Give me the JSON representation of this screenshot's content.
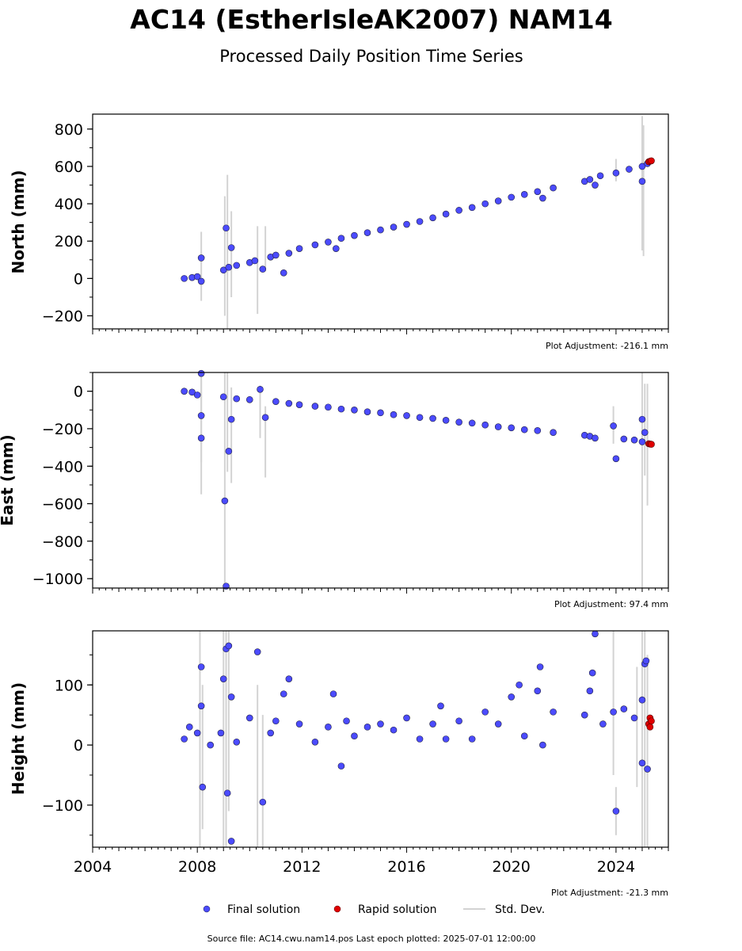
{
  "title": "AC14 (EstherIsleAK2007) NAM14",
  "subtitle": "Processed Daily Position Time Series",
  "legend": {
    "final": "Final solution",
    "rapid": "Rapid solution",
    "std": "Std. Dev."
  },
  "footer": "Source file: AC14.cwu.nam14.pos  Last epoch plotted: 2025-07-01 12:00:00",
  "colors": {
    "final": "#4b4bff",
    "rapid": "#e00000",
    "std": "#d3d3d3",
    "edge": "#202040"
  },
  "chart_data": [
    {
      "type": "scatter",
      "ylabel": "North (mm)",
      "xlim": [
        2004,
        2026
      ],
      "ylim": [
        -270,
        880
      ],
      "yticks": [
        800,
        600,
        400,
        200,
        0,
        -200
      ],
      "ytick_labels": [
        "800",
        "600",
        "400",
        "200",
        "0",
        "−200"
      ],
      "adjustment": "Plot Adjustment: -216.1 mm",
      "series_final": [
        [
          2007.5,
          0
        ],
        [
          2007.8,
          5
        ],
        [
          2008.0,
          10
        ],
        [
          2008.15,
          110
        ],
        [
          2008.15,
          -15
        ],
        [
          2009.0,
          45
        ],
        [
          2009.1,
          270
        ],
        [
          2009.2,
          60
        ],
        [
          2009.3,
          165
        ],
        [
          2009.5,
          70
        ],
        [
          2010.0,
          85
        ],
        [
          2010.2,
          95
        ],
        [
          2010.5,
          50
        ],
        [
          2010.8,
          115
        ],
        [
          2011.0,
          125
        ],
        [
          2011.3,
          30
        ],
        [
          2011.5,
          135
        ],
        [
          2011.9,
          160
        ],
        [
          2012.5,
          180
        ],
        [
          2013.0,
          195
        ],
        [
          2013.3,
          160
        ],
        [
          2013.5,
          215
        ],
        [
          2014.0,
          230
        ],
        [
          2014.5,
          245
        ],
        [
          2015.0,
          260
        ],
        [
          2015.5,
          275
        ],
        [
          2016.0,
          290
        ],
        [
          2016.5,
          305
        ],
        [
          2017.0,
          325
        ],
        [
          2017.5,
          345
        ],
        [
          2018.0,
          365
        ],
        [
          2018.5,
          380
        ],
        [
          2019.0,
          400
        ],
        [
          2019.5,
          415
        ],
        [
          2020.0,
          435
        ],
        [
          2020.5,
          450
        ],
        [
          2021.0,
          465
        ],
        [
          2021.2,
          430
        ],
        [
          2021.6,
          485
        ],
        [
          2022.8,
          520
        ],
        [
          2023.0,
          530
        ],
        [
          2023.2,
          500
        ],
        [
          2023.4,
          550
        ],
        [
          2024.0,
          565
        ],
        [
          2024.5,
          585
        ],
        [
          2025.0,
          600
        ],
        [
          2025.0,
          520
        ],
        [
          2025.2,
          615
        ]
      ],
      "series_rapid": [
        [
          2025.25,
          625
        ],
        [
          2025.3,
          628
        ],
        [
          2025.35,
          630
        ]
      ],
      "std_bars": [
        [
          2008.15,
          -120,
          250
        ],
        [
          2009.05,
          -200,
          440
        ],
        [
          2009.15,
          -280,
          555
        ],
        [
          2009.3,
          -100,
          360
        ],
        [
          2010.3,
          -190,
          280
        ],
        [
          2010.6,
          60,
          280
        ],
        [
          2025.0,
          150,
          870
        ],
        [
          2025.05,
          120,
          820
        ],
        [
          2024.0,
          520,
          640
        ]
      ]
    },
    {
      "type": "scatter",
      "ylabel": "East (mm)",
      "xlim": [
        2004,
        2026
      ],
      "ylim": [
        -1050,
        100
      ],
      "yticks": [
        0,
        -200,
        -400,
        -600,
        -800,
        -1000
      ],
      "ytick_labels": [
        "0",
        "−200",
        "−400",
        "−600",
        "−800",
        "−1000"
      ],
      "adjustment": "Plot Adjustment: 97.4 mm",
      "series_final": [
        [
          2007.5,
          0
        ],
        [
          2007.8,
          -5
        ],
        [
          2008.0,
          -20
        ],
        [
          2008.15,
          95
        ],
        [
          2008.15,
          -130
        ],
        [
          2008.15,
          -250
        ],
        [
          2009.0,
          -30
        ],
        [
          2009.05,
          -585
        ],
        [
          2009.1,
          -1040
        ],
        [
          2009.2,
          -320
        ],
        [
          2009.3,
          -150
        ],
        [
          2009.5,
          -40
        ],
        [
          2010.0,
          -45
        ],
        [
          2010.4,
          10
        ],
        [
          2010.6,
          -140
        ],
        [
          2011.0,
          -55
        ],
        [
          2011.5,
          -65
        ],
        [
          2011.9,
          -72
        ],
        [
          2012.5,
          -80
        ],
        [
          2013.0,
          -85
        ],
        [
          2013.5,
          -95
        ],
        [
          2014.0,
          -100
        ],
        [
          2014.5,
          -110
        ],
        [
          2015.0,
          -115
        ],
        [
          2015.5,
          -125
        ],
        [
          2016.0,
          -130
        ],
        [
          2016.5,
          -140
        ],
        [
          2017.0,
          -145
        ],
        [
          2017.5,
          -155
        ],
        [
          2018.0,
          -165
        ],
        [
          2018.5,
          -170
        ],
        [
          2019.0,
          -180
        ],
        [
          2019.5,
          -190
        ],
        [
          2020.0,
          -195
        ],
        [
          2020.5,
          -205
        ],
        [
          2021.0,
          -210
        ],
        [
          2021.6,
          -220
        ],
        [
          2022.8,
          -235
        ],
        [
          2023.0,
          -240
        ],
        [
          2023.2,
          -250
        ],
        [
          2023.9,
          -185
        ],
        [
          2024.0,
          -360
        ],
        [
          2024.3,
          -255
        ],
        [
          2024.7,
          -260
        ],
        [
          2025.0,
          -270
        ],
        [
          2025.0,
          -150
        ],
        [
          2025.1,
          -220
        ]
      ],
      "series_rapid": [
        [
          2025.25,
          -280
        ],
        [
          2025.3,
          -282
        ],
        [
          2025.35,
          -283
        ]
      ],
      "std_bars": [
        [
          2008.15,
          -550,
          100
        ],
        [
          2008.15,
          -380,
          60
        ],
        [
          2009.05,
          -1050,
          100
        ],
        [
          2009.15,
          -430,
          100
        ],
        [
          2009.3,
          -490,
          20
        ],
        [
          2010.4,
          -250,
          30
        ],
        [
          2010.6,
          -460,
          -80
        ],
        [
          2025.0,
          -1050,
          100
        ],
        [
          2025.1,
          -450,
          40
        ],
        [
          2025.2,
          -610,
          40
        ],
        [
          2023.9,
          -280,
          -80
        ]
      ]
    },
    {
      "type": "scatter",
      "ylabel": "Height (mm)",
      "xlim": [
        2004,
        2026
      ],
      "ylim": [
        -170,
        190
      ],
      "yticks": [
        100,
        0,
        -100
      ],
      "ytick_labels": [
        "100",
        "0",
        "−100"
      ],
      "xticks": [
        2004,
        2008,
        2012,
        2016,
        2020,
        2024
      ],
      "xtick_labels": [
        "2004",
        "2008",
        "2012",
        "2016",
        "2020",
        "2024"
      ],
      "adjustment": "Plot Adjustment: -21.3 mm",
      "series_final": [
        [
          2007.5,
          10
        ],
        [
          2007.7,
          30
        ],
        [
          2008.0,
          20
        ],
        [
          2008.15,
          130
        ],
        [
          2008.15,
          65
        ],
        [
          2008.2,
          -70
        ],
        [
          2008.5,
          0
        ],
        [
          2008.9,
          20
        ],
        [
          2009.0,
          110
        ],
        [
          2009.1,
          160
        ],
        [
          2009.2,
          165
        ],
        [
          2009.15,
          -80
        ],
        [
          2009.3,
          -160
        ],
        [
          2009.3,
          80
        ],
        [
          2009.5,
          5
        ],
        [
          2010.0,
          45
        ],
        [
          2010.3,
          155
        ],
        [
          2010.5,
          -95
        ],
        [
          2010.8,
          20
        ],
        [
          2011.0,
          40
        ],
        [
          2011.3,
          85
        ],
        [
          2011.5,
          110
        ],
        [
          2011.9,
          35
        ],
        [
          2012.5,
          5
        ],
        [
          2013.0,
          30
        ],
        [
          2013.2,
          85
        ],
        [
          2013.5,
          -35
        ],
        [
          2013.7,
          40
        ],
        [
          2014.0,
          15
        ],
        [
          2014.5,
          30
        ],
        [
          2015.0,
          35
        ],
        [
          2015.5,
          25
        ],
        [
          2016.0,
          45
        ],
        [
          2016.5,
          10
        ],
        [
          2017.0,
          35
        ],
        [
          2017.3,
          65
        ],
        [
          2017.5,
          10
        ],
        [
          2018.0,
          40
        ],
        [
          2018.5,
          10
        ],
        [
          2019.0,
          55
        ],
        [
          2019.5,
          35
        ],
        [
          2020.0,
          80
        ],
        [
          2020.3,
          100
        ],
        [
          2020.5,
          15
        ],
        [
          2021.0,
          90
        ],
        [
          2021.1,
          130
        ],
        [
          2021.2,
          0
        ],
        [
          2021.6,
          55
        ],
        [
          2022.8,
          50
        ],
        [
          2023.0,
          90
        ],
        [
          2023.1,
          120
        ],
        [
          2023.2,
          185
        ],
        [
          2023.5,
          35
        ],
        [
          2023.9,
          55
        ],
        [
          2024.0,
          -110
        ],
        [
          2024.3,
          60
        ],
        [
          2024.7,
          45
        ],
        [
          2025.0,
          75
        ],
        [
          2025.0,
          -30
        ],
        [
          2025.1,
          135
        ],
        [
          2025.2,
          -40
        ],
        [
          2025.15,
          140
        ]
      ],
      "series_rapid": [
        [
          2025.25,
          35
        ],
        [
          2025.3,
          45
        ],
        [
          2025.35,
          40
        ],
        [
          2025.3,
          30
        ]
      ],
      "std_bars": [
        [
          2008.1,
          -170,
          190
        ],
        [
          2008.2,
          -140,
          100
        ],
        [
          2009.0,
          -170,
          190
        ],
        [
          2009.1,
          -170,
          190
        ],
        [
          2009.2,
          -110,
          190
        ],
        [
          2010.3,
          -170,
          100
        ],
        [
          2010.5,
          -170,
          50
        ],
        [
          2023.9,
          -50,
          190
        ],
        [
          2024.0,
          -150,
          -70
        ],
        [
          2024.8,
          -70,
          130
        ],
        [
          2025.0,
          -170,
          190
        ],
        [
          2025.1,
          -170,
          190
        ],
        [
          2025.2,
          -170,
          150
        ]
      ]
    }
  ]
}
